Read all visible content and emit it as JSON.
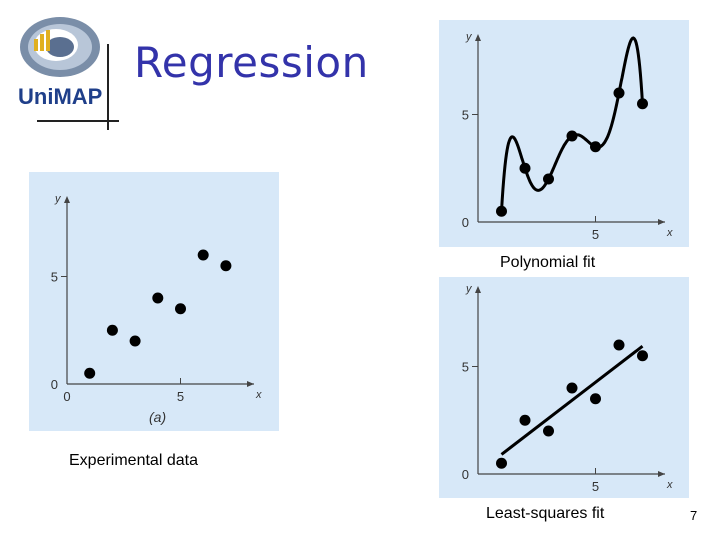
{
  "slide": {
    "title": "Regression",
    "logo_text": "UniMAP",
    "page_number": "7",
    "captions": {
      "experimental": "Experimental data",
      "polynomial": "Polynomial fit",
      "least_squares": "Least-squares fit"
    }
  },
  "colors": {
    "title": "#3333aa",
    "chart_bg": "#d7e8f8",
    "marks": "#000000"
  },
  "chart_data": [
    {
      "type": "scatter",
      "panel_label": "(a)",
      "xlabel": "x",
      "ylabel": "y",
      "xlim": [
        0,
        8
      ],
      "ylim": [
        0,
        8.5
      ],
      "xticks": [
        0,
        5
      ],
      "yticks": [
        0,
        5
      ],
      "x": [
        1,
        2,
        3,
        4,
        5,
        6,
        7
      ],
      "y": [
        0.5,
        2.5,
        2.0,
        4.0,
        3.5,
        6.0,
        5.5
      ]
    },
    {
      "type": "line",
      "xlabel": "x",
      "ylabel": "y",
      "xlim": [
        0,
        8
      ],
      "ylim": [
        0,
        8.5
      ],
      "xticks": [
        5
      ],
      "yticks": [
        0,
        5
      ],
      "x": [
        1,
        2,
        3,
        4,
        5,
        6,
        7
      ],
      "y": [
        0.5,
        2.5,
        2.0,
        4.0,
        3.5,
        6.0,
        5.5
      ]
    },
    {
      "type": "scatter",
      "xlabel": "x",
      "ylabel": "y",
      "xlim": [
        0,
        8
      ],
      "ylim": [
        0,
        8.5
      ],
      "xticks": [
        5
      ],
      "yticks": [
        0,
        5
      ],
      "x": [
        1,
        2,
        3,
        4,
        5,
        6,
        7
      ],
      "y": [
        0.5,
        2.5,
        2.0,
        4.0,
        3.5,
        6.0,
        5.5
      ],
      "fit_line": {
        "slope": 0.839,
        "intercept": 0.071
      }
    }
  ]
}
